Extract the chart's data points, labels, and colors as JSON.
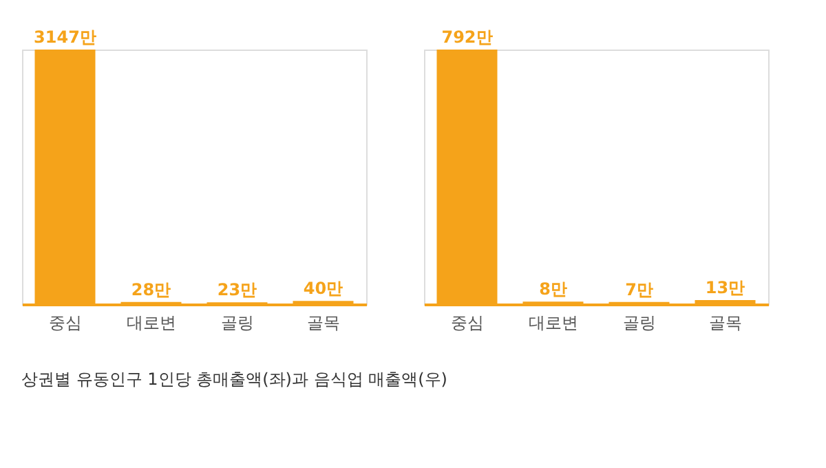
{
  "chart_data": [
    {
      "type": "bar",
      "categories": [
        "중심",
        "대로변",
        "골링",
        "골목"
      ],
      "values": [
        3147,
        28,
        23,
        40
      ],
      "value_labels": [
        "3147만",
        "28만",
        "23만",
        "40만"
      ],
      "color": "#f5a31a",
      "tick_labels": "x",
      "grid": false,
      "annotations": [
        "상권별 유동인구 1인당 총매출액(좌)과 음식업 매출액(우)"
      ]
    },
    {
      "type": "bar",
      "categories": [
        "중심",
        "대로변",
        "골링",
        "골목"
      ],
      "values": [
        792,
        8,
        7,
        13
      ],
      "value_labels": [
        "792만",
        "8만",
        "7만",
        "13만"
      ],
      "color": "#f5a31a",
      "tick_labels": "x",
      "grid": false
    }
  ]
}
